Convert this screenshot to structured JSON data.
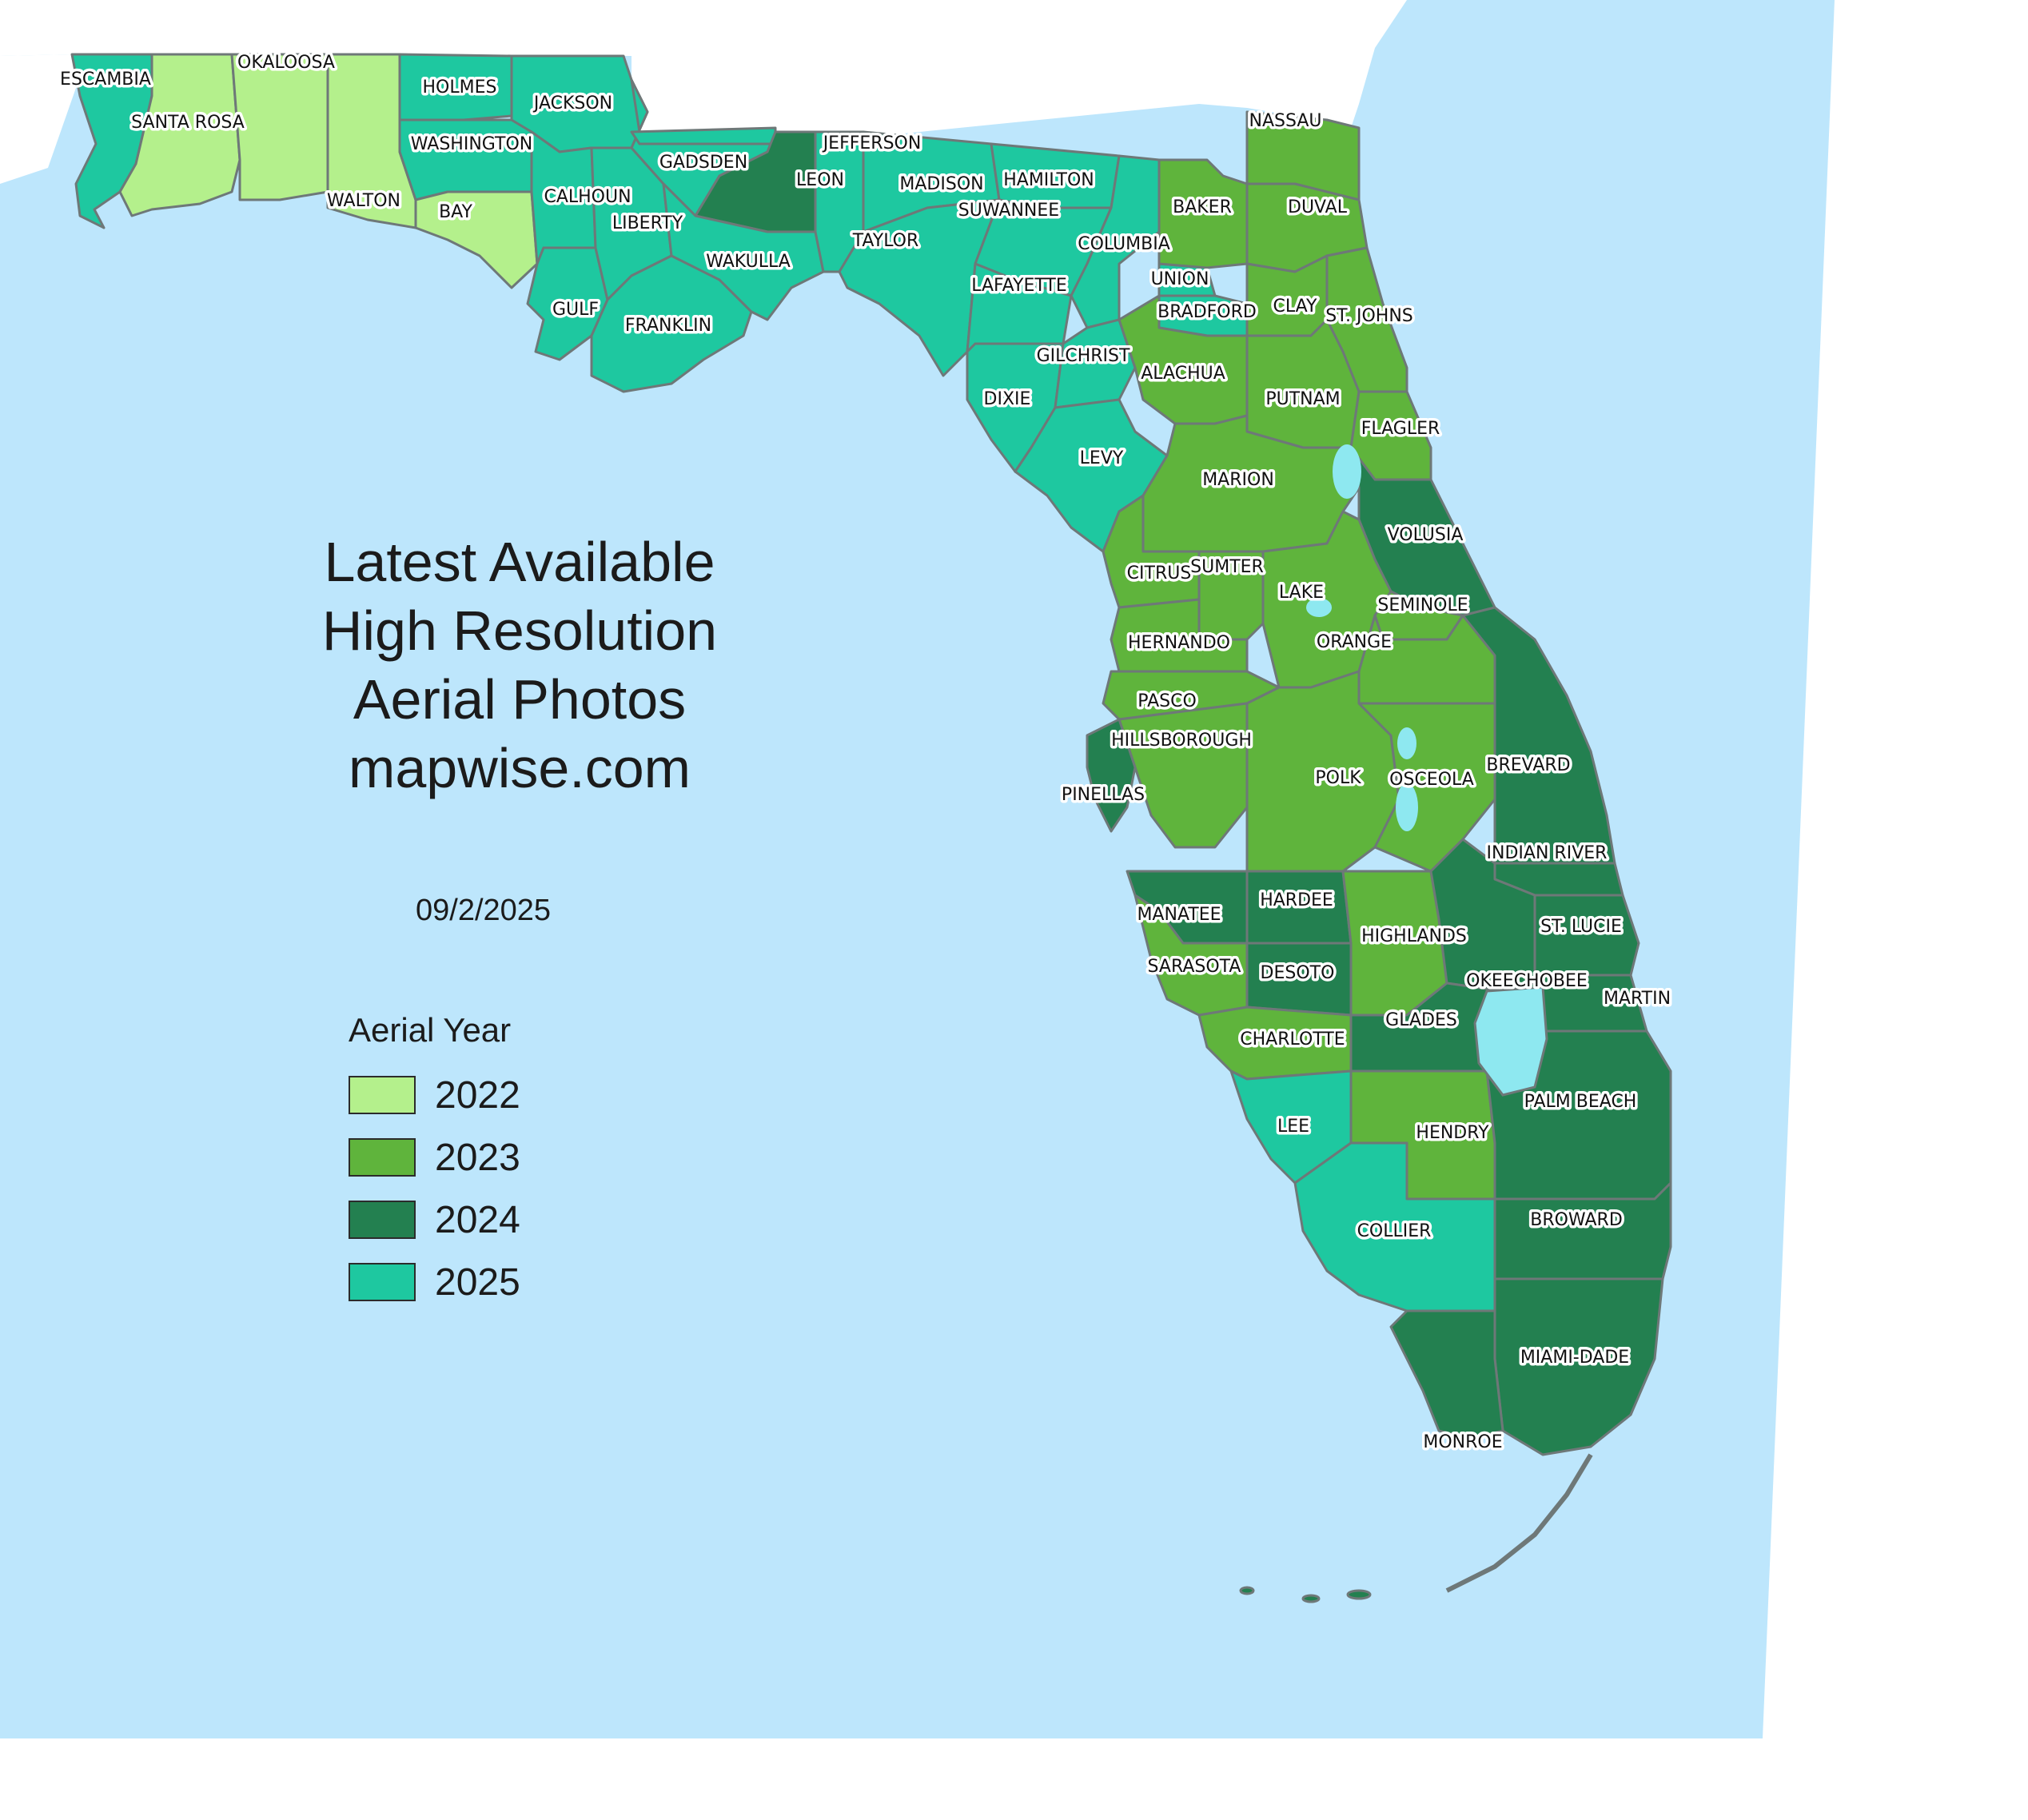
{
  "title": [
    "Latest Available",
    "High Resolution",
    "Aerial Photos",
    "mapwise.com"
  ],
  "date": "09/2/2025",
  "legend": {
    "title": "Aerial Year",
    "items": [
      {
        "label": "2022",
        "color": "#b4f08c"
      },
      {
        "label": "2023",
        "color": "#5fb43c"
      },
      {
        "label": "2024",
        "color": "#238050"
      },
      {
        "label": "2025",
        "color": "#1ec8a0"
      }
    ]
  },
  "colors": {
    "water": "#bde6fc",
    "land": "#ffffff",
    "lake": "#8ee8f0",
    "county_border": "#6e7878"
  },
  "counties": [
    {
      "name": "ESCAMBIA",
      "year": "2025"
    },
    {
      "name": "SANTA ROSA",
      "year": "2022"
    },
    {
      "name": "OKALOOSA",
      "year": "2022"
    },
    {
      "name": "WALTON",
      "year": "2022"
    },
    {
      "name": "HOLMES",
      "year": "2025"
    },
    {
      "name": "WASHINGTON",
      "year": "2025"
    },
    {
      "name": "BAY",
      "year": "2022"
    },
    {
      "name": "JACKSON",
      "year": "2025"
    },
    {
      "name": "CALHOUN",
      "year": "2025"
    },
    {
      "name": "GULF",
      "year": "2025"
    },
    {
      "name": "LIBERTY",
      "year": "2025"
    },
    {
      "name": "GADSDEN",
      "year": "2025"
    },
    {
      "name": "FRANKLIN",
      "year": "2025"
    },
    {
      "name": "LEON",
      "year": "2024"
    },
    {
      "name": "WAKULLA",
      "year": "2025"
    },
    {
      "name": "JEFFERSON",
      "year": "2025"
    },
    {
      "name": "MADISON",
      "year": "2025"
    },
    {
      "name": "TAYLOR",
      "year": "2025"
    },
    {
      "name": "HAMILTON",
      "year": "2025"
    },
    {
      "name": "SUWANNEE",
      "year": "2025"
    },
    {
      "name": "LAFAYETTE",
      "year": "2025"
    },
    {
      "name": "COLUMBIA",
      "year": "2025"
    },
    {
      "name": "BAKER",
      "year": "2023"
    },
    {
      "name": "NASSAU",
      "year": "2023"
    },
    {
      "name": "DUVAL",
      "year": "2023"
    },
    {
      "name": "UNION",
      "year": "2025"
    },
    {
      "name": "BRADFORD",
      "year": "2025"
    },
    {
      "name": "CLAY",
      "year": "2023"
    },
    {
      "name": "ST. JOHNS",
      "year": "2023"
    },
    {
      "name": "GILCHRIST",
      "year": "2025"
    },
    {
      "name": "ALACHUA",
      "year": "2023"
    },
    {
      "name": "DIXIE",
      "year": "2025"
    },
    {
      "name": "PUTNAM",
      "year": "2023"
    },
    {
      "name": "FLAGLER",
      "year": "2023"
    },
    {
      "name": "LEVY",
      "year": "2025"
    },
    {
      "name": "MARION",
      "year": "2023"
    },
    {
      "name": "VOLUSIA",
      "year": "2024"
    },
    {
      "name": "CITRUS",
      "year": "2023"
    },
    {
      "name": "SUMTER",
      "year": "2023"
    },
    {
      "name": "LAKE",
      "year": "2023"
    },
    {
      "name": "SEMINOLE",
      "year": "2023"
    },
    {
      "name": "HERNANDO",
      "year": "2023"
    },
    {
      "name": "ORANGE",
      "year": "2023"
    },
    {
      "name": "PASCO",
      "year": "2023"
    },
    {
      "name": "HILLSBOROUGH",
      "year": "2023"
    },
    {
      "name": "PINELLAS",
      "year": "2024"
    },
    {
      "name": "POLK",
      "year": "2023"
    },
    {
      "name": "OSCEOLA",
      "year": "2023"
    },
    {
      "name": "BREVARD",
      "year": "2024"
    },
    {
      "name": "INDIAN RIVER",
      "year": "2024"
    },
    {
      "name": "MANATEE",
      "year": "2024"
    },
    {
      "name": "HARDEE",
      "year": "2024"
    },
    {
      "name": "HIGHLANDS",
      "year": "2023"
    },
    {
      "name": "ST. LUCIE",
      "year": "2024"
    },
    {
      "name": "SARASOTA",
      "year": "2023"
    },
    {
      "name": "DESOTO",
      "year": "2024"
    },
    {
      "name": "OKEECHOBEE",
      "year": "2024"
    },
    {
      "name": "MARTIN",
      "year": "2024"
    },
    {
      "name": "GLADES",
      "year": "2024"
    },
    {
      "name": "CHARLOTTE",
      "year": "2023"
    },
    {
      "name": "PALM BEACH",
      "year": "2024"
    },
    {
      "name": "LEE",
      "year": "2025"
    },
    {
      "name": "HENDRY",
      "year": "2023"
    },
    {
      "name": "COLLIER",
      "year": "2025"
    },
    {
      "name": "BROWARD",
      "year": "2024"
    },
    {
      "name": "MIAMI-DADE",
      "year": "2024"
    },
    {
      "name": "MONROE",
      "year": "2024"
    }
  ]
}
